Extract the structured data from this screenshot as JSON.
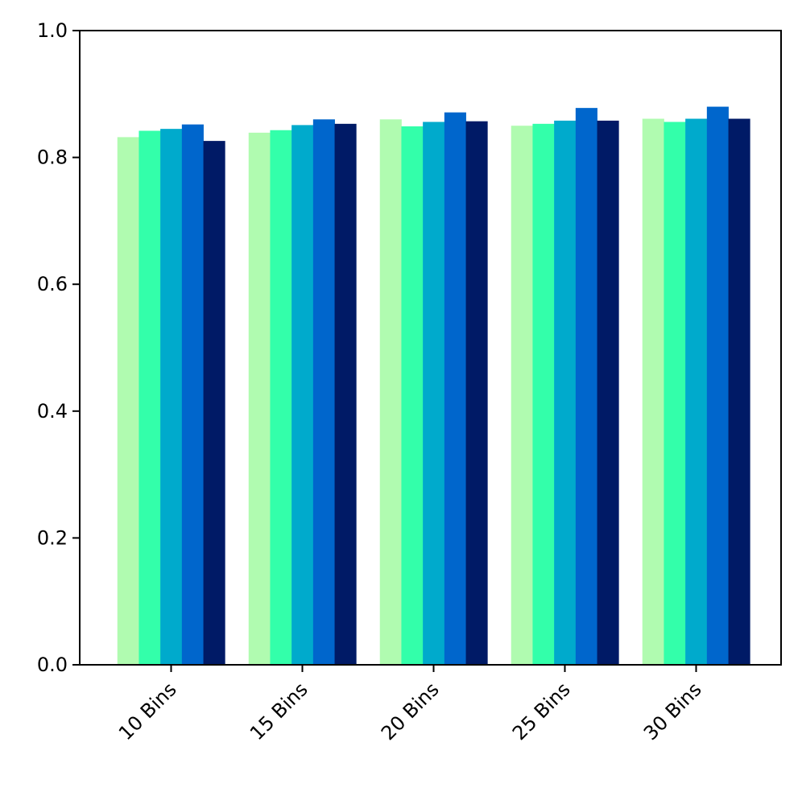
{
  "chart_data": {
    "type": "bar",
    "categories": [
      "10 Bins",
      "15 Bins",
      "20 Bins",
      "25 Bins",
      "30 Bins"
    ],
    "series": [
      {
        "values": [
          0.832,
          0.839,
          0.86,
          0.85,
          0.861
        ]
      },
      {
        "values": [
          0.842,
          0.843,
          0.849,
          0.853,
          0.856
        ]
      },
      {
        "values": [
          0.845,
          0.851,
          0.856,
          0.858,
          0.861
        ]
      },
      {
        "values": [
          0.852,
          0.86,
          0.871,
          0.878,
          0.88
        ]
      },
      {
        "values": [
          0.826,
          0.853,
          0.857,
          0.858,
          0.861
        ]
      }
    ],
    "colors": [
      "#b0fbb0",
      "#33ffaa",
      "#00aacc",
      "#0066cc",
      "#001a66"
    ],
    "yticks": [
      "0.0",
      "0.2",
      "0.4",
      "0.6",
      "0.8",
      "1.0"
    ],
    "ylim": [
      0,
      1
    ],
    "grid": false,
    "title": "",
    "xlabel": "",
    "ylabel": ""
  }
}
